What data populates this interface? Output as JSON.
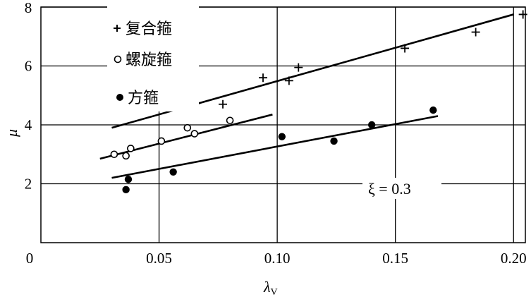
{
  "chart_data": {
    "type": "scatter",
    "xlabel": "λ",
    "xlabel_sub": "V",
    "ylabel": "μ",
    "xlim": [
      0,
      0.205
    ],
    "ylim": [
      0,
      8
    ],
    "x_ticks": [
      {
        "value": 0.05,
        "label": "0.05"
      },
      {
        "value": 0.1,
        "label": "0.10"
      },
      {
        "value": 0.15,
        "label": "0.15"
      },
      {
        "value": 0.2,
        "label": "0.20"
      }
    ],
    "x_zero_label": "0",
    "y_ticks": [
      {
        "value": 2,
        "label": "2"
      },
      {
        "value": 4,
        "label": "4"
      },
      {
        "value": 6,
        "label": "6"
      },
      {
        "value": 8,
        "label": "8"
      }
    ],
    "grid": true,
    "legend_position": "top-left",
    "series": [
      {
        "name": "复合箍",
        "marker": "plus",
        "points": [
          [
            0.077,
            4.7
          ],
          [
            0.094,
            5.6
          ],
          [
            0.105,
            5.5
          ],
          [
            0.109,
            5.95
          ],
          [
            0.154,
            6.6
          ],
          [
            0.184,
            7.15
          ],
          [
            0.204,
            7.75
          ]
        ],
        "fit_line": [
          [
            0.03,
            3.9
          ],
          [
            0.2,
            7.75
          ]
        ]
      },
      {
        "name": "螺旋箍",
        "marker": "open-circle",
        "points": [
          [
            0.031,
            3.0
          ],
          [
            0.036,
            2.95
          ],
          [
            0.038,
            3.2
          ],
          [
            0.051,
            3.45
          ],
          [
            0.062,
            3.9
          ],
          [
            0.065,
            3.7
          ],
          [
            0.08,
            4.15
          ]
        ],
        "fit_line": [
          [
            0.025,
            2.85
          ],
          [
            0.098,
            4.35
          ]
        ]
      },
      {
        "name": "方箍",
        "marker": "filled-circle",
        "points": [
          [
            0.036,
            1.8
          ],
          [
            0.037,
            2.15
          ],
          [
            0.056,
            2.4
          ],
          [
            0.102,
            3.6
          ],
          [
            0.124,
            3.45
          ],
          [
            0.14,
            4.0
          ],
          [
            0.166,
            4.5
          ]
        ],
        "fit_line": [
          [
            0.03,
            2.2
          ],
          [
            0.168,
            4.3
          ]
        ]
      }
    ],
    "annotation": {
      "text": "ξ = 0.3",
      "x": 0.17,
      "y": 2.0
    }
  }
}
